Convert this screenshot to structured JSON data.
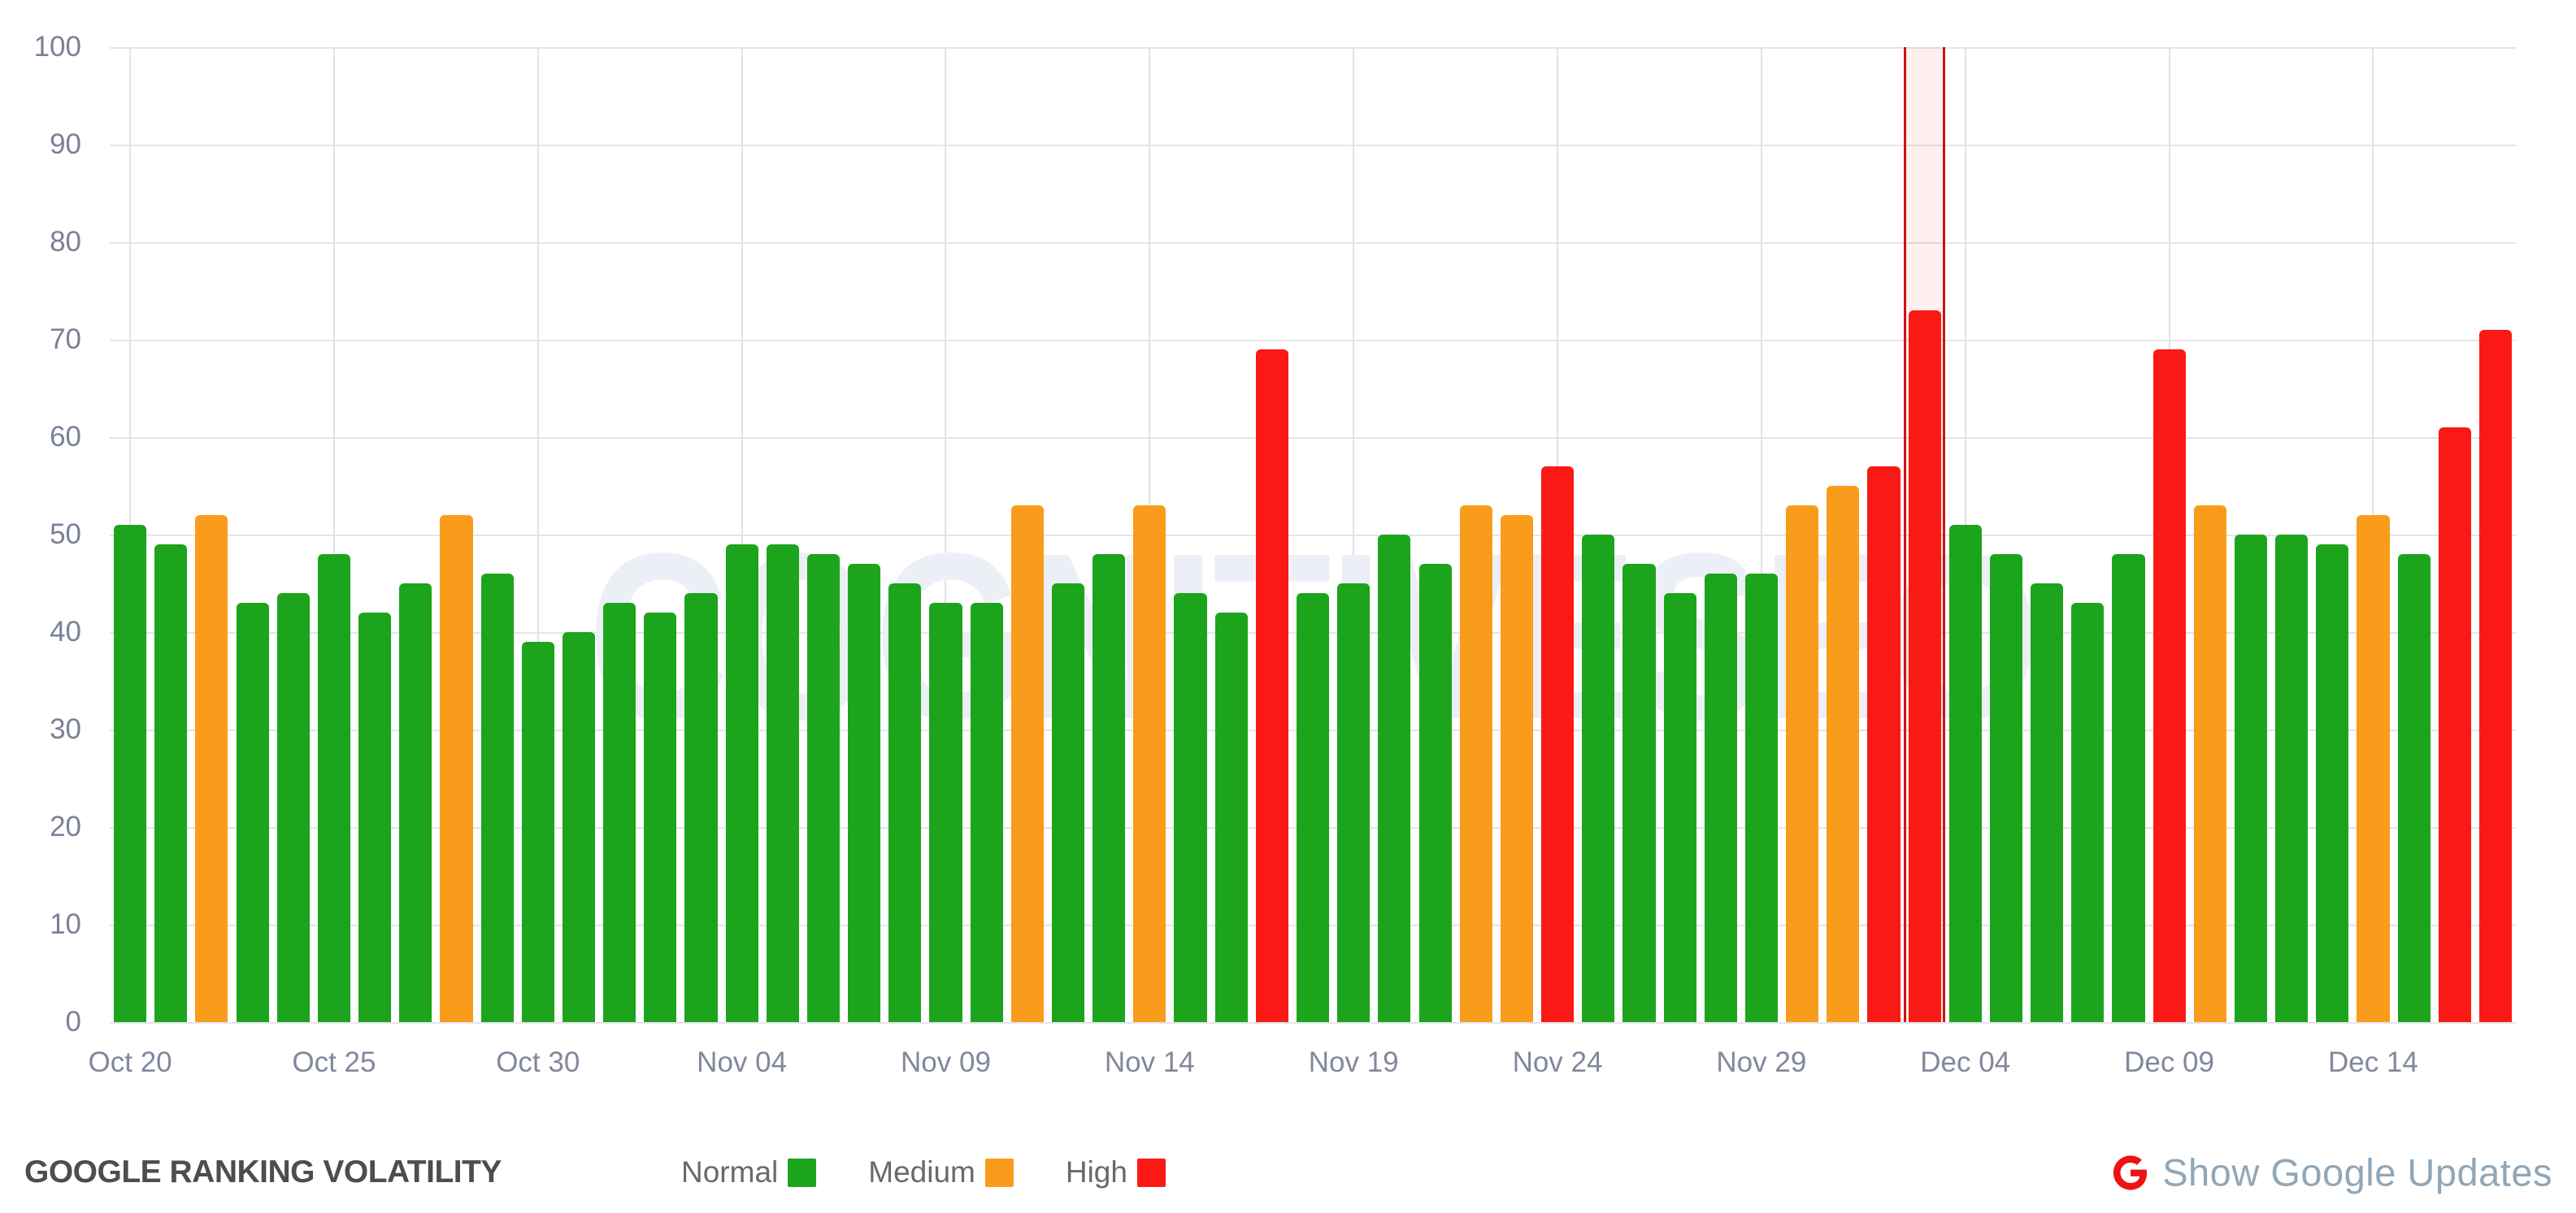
{
  "watermark": "COGNITIVESEO",
  "colors": {
    "normal": "#1CA41C",
    "medium": "#F99C1B",
    "high": "#FB1916",
    "update_band_fill": "rgba(221,44,32,0.07)",
    "update_band_border": "#CC1410",
    "grid": "#E4E4E9",
    "axis_label": "#7B8096",
    "google_g": "#EE1212",
    "watermark": "#ECEFF6"
  },
  "chart_data": {
    "type": "bar",
    "title": "GOOGLE RANKING VOLATILITY",
    "xlabel": "",
    "ylabel": "",
    "ylim": [
      0,
      100
    ],
    "yticks": [
      0,
      10,
      20,
      30,
      40,
      50,
      60,
      70,
      80,
      90,
      100
    ],
    "grid": true,
    "legend_position": "bottom",
    "x_tick_labels": [
      "Oct 20",
      "Oct 25",
      "Oct 30",
      "Nov 04",
      "Nov 09",
      "Nov 14",
      "Nov 19",
      "Nov 24",
      "Nov 29",
      "Dec 04",
      "Dec 09",
      "Dec 14"
    ],
    "points": [
      {
        "date": "Oct 20",
        "label": "Oct 20",
        "value": 51,
        "level": "normal"
      },
      {
        "date": "Oct 21",
        "label": "",
        "value": 49,
        "level": "normal"
      },
      {
        "date": "Oct 22",
        "label": "",
        "value": 52,
        "level": "medium"
      },
      {
        "date": "Oct 23",
        "label": "",
        "value": 43,
        "level": "normal"
      },
      {
        "date": "Oct 24",
        "label": "",
        "value": 44,
        "level": "normal"
      },
      {
        "date": "Oct 25",
        "label": "Oct 25",
        "value": 48,
        "level": "normal"
      },
      {
        "date": "Oct 26",
        "label": "",
        "value": 42,
        "level": "normal"
      },
      {
        "date": "Oct 27",
        "label": "",
        "value": 45,
        "level": "normal"
      },
      {
        "date": "Oct 28",
        "label": "",
        "value": 52,
        "level": "medium"
      },
      {
        "date": "Oct 29",
        "label": "",
        "value": 46,
        "level": "normal"
      },
      {
        "date": "Oct 30",
        "label": "Oct 30",
        "value": 39,
        "level": "normal"
      },
      {
        "date": "Oct 31",
        "label": "",
        "value": 40,
        "level": "normal"
      },
      {
        "date": "Nov 01",
        "label": "",
        "value": 43,
        "level": "normal"
      },
      {
        "date": "Nov 02",
        "label": "",
        "value": 42,
        "level": "normal"
      },
      {
        "date": "Nov 03",
        "label": "",
        "value": 44,
        "level": "normal"
      },
      {
        "date": "Nov 04",
        "label": "Nov 04",
        "value": 49,
        "level": "normal"
      },
      {
        "date": "Nov 05",
        "label": "",
        "value": 49,
        "level": "normal"
      },
      {
        "date": "Nov 06",
        "label": "",
        "value": 48,
        "level": "normal"
      },
      {
        "date": "Nov 07",
        "label": "",
        "value": 47,
        "level": "normal"
      },
      {
        "date": "Nov 08",
        "label": "",
        "value": 45,
        "level": "normal"
      },
      {
        "date": "Nov 09",
        "label": "Nov 09",
        "value": 43,
        "level": "normal"
      },
      {
        "date": "Nov 10",
        "label": "",
        "value": 43,
        "level": "normal"
      },
      {
        "date": "Nov 11",
        "label": "",
        "value": 53,
        "level": "medium"
      },
      {
        "date": "Nov 12",
        "label": "",
        "value": 45,
        "level": "normal"
      },
      {
        "date": "Nov 13",
        "label": "",
        "value": 48,
        "level": "normal"
      },
      {
        "date": "Nov 14",
        "label": "Nov 14",
        "value": 53,
        "level": "medium"
      },
      {
        "date": "Nov 15",
        "label": "",
        "value": 44,
        "level": "normal"
      },
      {
        "date": "Nov 16",
        "label": "",
        "value": 42,
        "level": "normal"
      },
      {
        "date": "Nov 17",
        "label": "",
        "value": 69,
        "level": "high"
      },
      {
        "date": "Nov 18",
        "label": "",
        "value": 44,
        "level": "normal"
      },
      {
        "date": "Nov 19",
        "label": "Nov 19",
        "value": 45,
        "level": "normal"
      },
      {
        "date": "Nov 20",
        "label": "",
        "value": 50,
        "level": "normal"
      },
      {
        "date": "Nov 21",
        "label": "",
        "value": 47,
        "level": "normal"
      },
      {
        "date": "Nov 22",
        "label": "",
        "value": 53,
        "level": "medium"
      },
      {
        "date": "Nov 23",
        "label": "",
        "value": 52,
        "level": "medium"
      },
      {
        "date": "Nov 24",
        "label": "Nov 24",
        "value": 57,
        "level": "high"
      },
      {
        "date": "Nov 25",
        "label": "",
        "value": 50,
        "level": "normal"
      },
      {
        "date": "Nov 26",
        "label": "",
        "value": 47,
        "level": "normal"
      },
      {
        "date": "Nov 27",
        "label": "",
        "value": 44,
        "level": "normal"
      },
      {
        "date": "Nov 28",
        "label": "",
        "value": 46,
        "level": "normal"
      },
      {
        "date": "Nov 29",
        "label": "Nov 29",
        "value": 46,
        "level": "normal"
      },
      {
        "date": "Nov 30",
        "label": "",
        "value": 53,
        "level": "medium"
      },
      {
        "date": "Dec 01",
        "label": "",
        "value": 55,
        "level": "medium"
      },
      {
        "date": "Dec 02",
        "label": "",
        "value": 57,
        "level": "high"
      },
      {
        "date": "Dec 03",
        "label": "",
        "value": 73,
        "level": "high",
        "google_update": true
      },
      {
        "date": "Dec 04",
        "label": "Dec 04",
        "value": 51,
        "level": "normal"
      },
      {
        "date": "Dec 05",
        "label": "",
        "value": 48,
        "level": "normal"
      },
      {
        "date": "Dec 06",
        "label": "",
        "value": 45,
        "level": "normal"
      },
      {
        "date": "Dec 07",
        "label": "",
        "value": 43,
        "level": "normal"
      },
      {
        "date": "Dec 08",
        "label": "",
        "value": 48,
        "level": "normal"
      },
      {
        "date": "Dec 09",
        "label": "Dec 09",
        "value": 69,
        "level": "high"
      },
      {
        "date": "Dec 10",
        "label": "",
        "value": 53,
        "level": "medium"
      },
      {
        "date": "Dec 11",
        "label": "",
        "value": 50,
        "level": "normal"
      },
      {
        "date": "Dec 12",
        "label": "",
        "value": 50,
        "level": "normal"
      },
      {
        "date": "Dec 13",
        "label": "",
        "value": 49,
        "level": "normal"
      },
      {
        "date": "Dec 14",
        "label": "Dec 14",
        "value": 52,
        "level": "medium"
      },
      {
        "date": "Dec 15",
        "label": "",
        "value": 48,
        "level": "normal"
      },
      {
        "date": "Dec 16",
        "label": "",
        "value": 61,
        "level": "high"
      },
      {
        "date": "Dec 17",
        "label": "",
        "value": 71,
        "level": "high"
      }
    ]
  },
  "footer": {
    "title": "GOOGLE RANKING VOLATILITY",
    "legend": [
      {
        "label": "Normal",
        "level": "normal"
      },
      {
        "label": "Medium",
        "level": "medium"
      },
      {
        "label": "High",
        "level": "high"
      }
    ],
    "google_updates_label": "Show Google Updates"
  }
}
